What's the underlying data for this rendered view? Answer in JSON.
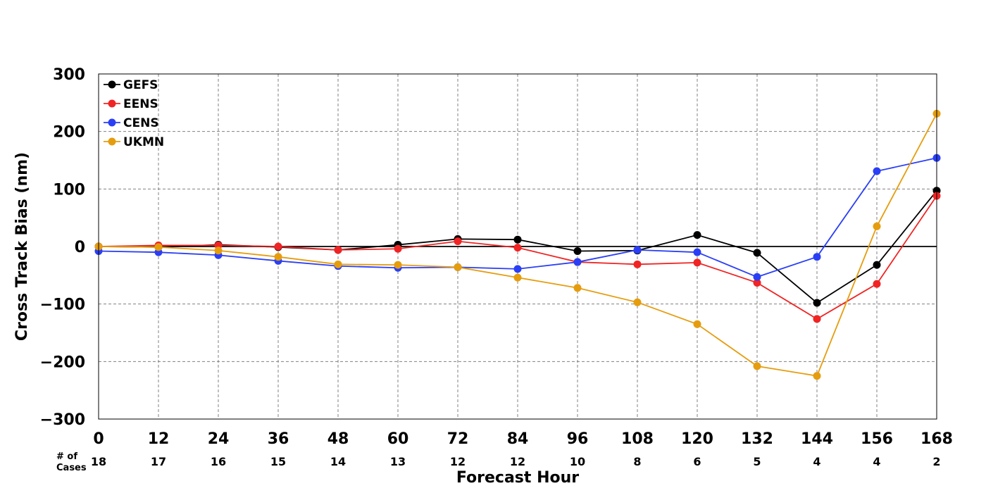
{
  "chart_data": {
    "type": "line",
    "title": "",
    "xlabel": "Forecast Hour",
    "ylabel": "Cross Track Bias (nm)",
    "x": [
      0,
      12,
      24,
      36,
      48,
      60,
      72,
      84,
      96,
      108,
      120,
      132,
      144,
      156,
      168
    ],
    "xlim": [
      0,
      168
    ],
    "ylim": [
      -300,
      300
    ],
    "x_ticks": [
      "0",
      "12",
      "24",
      "36",
      "48",
      "60",
      "72",
      "84",
      "96",
      "108",
      "120",
      "132",
      "144",
      "156",
      "168"
    ],
    "y_ticks": [
      300,
      200,
      100,
      0,
      -100,
      -200,
      -300
    ],
    "y_tick_labels": [
      "300",
      "200",
      "100",
      "0",
      "−100",
      "−200",
      "−300"
    ],
    "grid": true,
    "zero_line": true,
    "legend_position": "top-left",
    "cases_label": "# of Cases",
    "cases_label_lines": [
      "# of",
      "Cases"
    ],
    "cases": [
      "18",
      "17",
      "16",
      "15",
      "14",
      "13",
      "12",
      "12",
      "10",
      "8",
      "6",
      "5",
      "4",
      "4",
      "2"
    ],
    "series": [
      {
        "name": "GEFS",
        "color": "#000000",
        "values": [
          0,
          -1,
          3,
          -1,
          -6,
          3,
          13,
          12,
          -8,
          -7,
          20,
          -11,
          -98,
          -32,
          97
        ]
      },
      {
        "name": "EENS",
        "color": "#f02424",
        "values": [
          0,
          2,
          2,
          0,
          -6,
          -4,
          9,
          -2,
          -27,
          -31,
          -28,
          -63,
          -126,
          -65,
          88
        ]
      },
      {
        "name": "CENS",
        "color": "#2a3ff5",
        "values": [
          -8,
          -10,
          -15,
          -25,
          -34,
          -37,
          -36,
          -39,
          -27,
          -6,
          -10,
          -53,
          -18,
          131,
          154
        ]
      },
      {
        "name": "UKMN",
        "color": "#e59d0e",
        "values": [
          0,
          -1,
          -7,
          -18,
          -31,
          -32,
          -36,
          -54,
          -72,
          -97,
          -135,
          -208,
          -225,
          35,
          231
        ]
      }
    ]
  }
}
